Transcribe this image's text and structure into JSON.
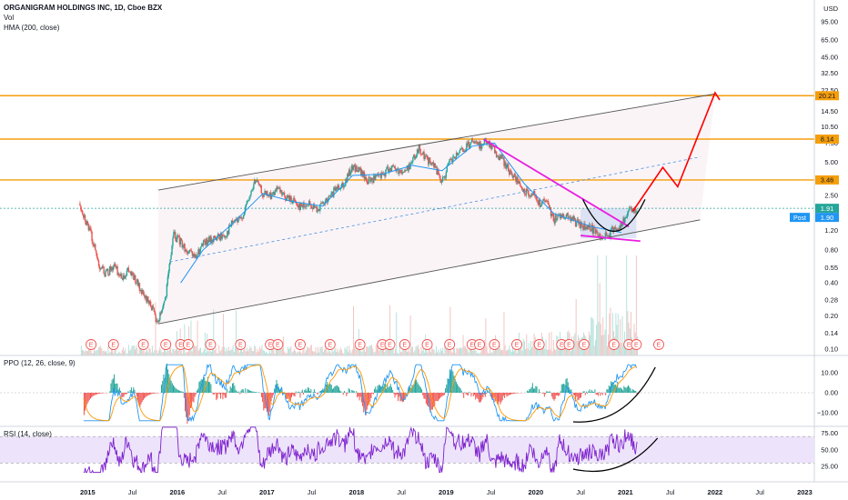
{
  "header": {
    "symbol_title": "ORGANIGRAM HOLDINGS INC, 1D, Cboe BZX",
    "volume_label": "Vol",
    "hma_label": "HMA (200, close)",
    "currency": "USD"
  },
  "panes": {
    "ppo_label": "PPO (12, 26, close, 9)",
    "rsi_label": "RSI (14, close)",
    "post_tag": "Post",
    "earnings_marker": "E"
  },
  "colors": {
    "candle_up": "#26a69a",
    "candle_down": "#ef5350",
    "hma": "#2196f3",
    "resistance": "#f59e0b",
    "channel": "#555555",
    "trendline": "#e91ee0",
    "projection": "#ff0000",
    "rsi": "#7e22ce",
    "rsi_band": "#ede3fa",
    "ppo_line": "#2196f3",
    "ppo_signal": "#ff9800"
  },
  "chart_data": [
    {
      "type": "candlestick",
      "title": "ORGANIGRAM HOLDINGS INC, 1D, Cboe BZX",
      "x_axis": {
        "ticks": [
          "2015",
          "Jul",
          "2016",
          "Jul",
          "2017",
          "Jul",
          "2018",
          "Jul",
          "2019",
          "Jul",
          "2020",
          "Jul",
          "2021",
          "Jul",
          "2022",
          "Jul",
          "2023"
        ],
        "range": [
          "2014-10",
          "2023-04"
        ]
      },
      "y_axis": {
        "unit": "USD",
        "scale": "log",
        "ticks": [
          95.0,
          65.0,
          45.0,
          32.5,
          22.5,
          14.5,
          10.5,
          7.5,
          5.0,
          3.5,
          2.5,
          1.75,
          1.2,
          0.8,
          0.55,
          0.4,
          0.28,
          0.2,
          0.14,
          0.1
        ],
        "tick_labels": [
          "95.00",
          "65.00",
          "45.00",
          "32.50",
          "22.50",
          "14.50",
          "10.50",
          "7.50",
          "5.00",
          "3.50",
          "2.50",
          "1.75",
          "1.20",
          "0.80",
          "0.55",
          "0.40",
          "0.28",
          "0.20",
          "0.14",
          "0.10"
        ]
      },
      "price_path": [
        {
          "date": "2014-11-15",
          "price": 2.7
        },
        {
          "date": "2014-12-15",
          "price": 1.7
        },
        {
          "date": "2015-01-15",
          "price": 1.1
        },
        {
          "date": "2015-02-15",
          "price": 0.6
        },
        {
          "date": "2015-03-15",
          "price": 0.48
        },
        {
          "date": "2015-04-15",
          "price": 0.58
        },
        {
          "date": "2015-05-15",
          "price": 0.45
        },
        {
          "date": "2015-06-15",
          "price": 0.52
        },
        {
          "date": "2015-07-15",
          "price": 0.42
        },
        {
          "date": "2015-08-15",
          "price": 0.3
        },
        {
          "date": "2015-09-15",
          "price": 0.26
        },
        {
          "date": "2015-10-10",
          "price": 0.17
        },
        {
          "date": "2015-11-15",
          "price": 0.3
        },
        {
          "date": "2015-12-15",
          "price": 1.1
        },
        {
          "date": "2016-01-15",
          "price": 0.95
        },
        {
          "date": "2016-02-15",
          "price": 0.75
        },
        {
          "date": "2016-03-15",
          "price": 0.68
        },
        {
          "date": "2016-04-15",
          "price": 0.9
        },
        {
          "date": "2016-05-15",
          "price": 1.0
        },
        {
          "date": "2016-06-15",
          "price": 1.05
        },
        {
          "date": "2016-07-15",
          "price": 1.1
        },
        {
          "date": "2016-08-15",
          "price": 1.45
        },
        {
          "date": "2016-09-15",
          "price": 1.5
        },
        {
          "date": "2016-10-15",
          "price": 2.2
        },
        {
          "date": "2016-11-15",
          "price": 3.5
        },
        {
          "date": "2016-12-15",
          "price": 2.6
        },
        {
          "date": "2017-01-15",
          "price": 2.5
        },
        {
          "date": "2017-02-15",
          "price": 2.8
        },
        {
          "date": "2017-03-15",
          "price": 2.4
        },
        {
          "date": "2017-04-15",
          "price": 2.3
        },
        {
          "date": "2017-05-15",
          "price": 2.0
        },
        {
          "date": "2017-06-15",
          "price": 2.1
        },
        {
          "date": "2017-07-15",
          "price": 1.9
        },
        {
          "date": "2017-08-15",
          "price": 2.05
        },
        {
          "date": "2017-09-15",
          "price": 2.4
        },
        {
          "date": "2017-10-15",
          "price": 3.0
        },
        {
          "date": "2017-11-15",
          "price": 3.3
        },
        {
          "date": "2017-12-15",
          "price": 4.6
        },
        {
          "date": "2018-01-15",
          "price": 4.2
        },
        {
          "date": "2018-02-15",
          "price": 3.4
        },
        {
          "date": "2018-03-15",
          "price": 3.6
        },
        {
          "date": "2018-04-15",
          "price": 3.8
        },
        {
          "date": "2018-05-15",
          "price": 4.6
        },
        {
          "date": "2018-06-15",
          "price": 4.3
        },
        {
          "date": "2018-07-15",
          "price": 4.1
        },
        {
          "date": "2018-08-15",
          "price": 5.2
        },
        {
          "date": "2018-09-15",
          "price": 6.7
        },
        {
          "date": "2018-10-15",
          "price": 5.3
        },
        {
          "date": "2018-11-15",
          "price": 4.6
        },
        {
          "date": "2018-12-15",
          "price": 3.3
        },
        {
          "date": "2019-01-15",
          "price": 5.0
        },
        {
          "date": "2019-02-15",
          "price": 5.8
        },
        {
          "date": "2019-03-15",
          "price": 6.6
        },
        {
          "date": "2019-04-15",
          "price": 7.6
        },
        {
          "date": "2019-05-15",
          "price": 7.0
        },
        {
          "date": "2019-06-15",
          "price": 8.1
        },
        {
          "date": "2019-07-15",
          "price": 6.3
        },
        {
          "date": "2019-08-15",
          "price": 5.4
        },
        {
          "date": "2019-09-15",
          "price": 4.2
        },
        {
          "date": "2019-10-15",
          "price": 3.4
        },
        {
          "date": "2019-11-15",
          "price": 2.6
        },
        {
          "date": "2019-12-15",
          "price": 2.7
        },
        {
          "date": "2020-01-15",
          "price": 2.1
        },
        {
          "date": "2020-02-15",
          "price": 2.2
        },
        {
          "date": "2020-03-15",
          "price": 1.5
        },
        {
          "date": "2020-04-15",
          "price": 1.7
        },
        {
          "date": "2020-05-15",
          "price": 1.6
        },
        {
          "date": "2020-06-15",
          "price": 1.4
        },
        {
          "date": "2020-07-15",
          "price": 1.3
        },
        {
          "date": "2020-08-15",
          "price": 1.25
        },
        {
          "date": "2020-09-15",
          "price": 1.1
        },
        {
          "date": "2020-10-15",
          "price": 1.05
        },
        {
          "date": "2020-11-15",
          "price": 1.25
        },
        {
          "date": "2020-12-15",
          "price": 1.35
        },
        {
          "date": "2021-01-15",
          "price": 1.8
        },
        {
          "date": "2021-02-15",
          "price": 1.91
        }
      ],
      "hma_path": [
        {
          "date": "2016-01-15",
          "price": 0.4
        },
        {
          "date": "2016-04-15",
          "price": 0.8
        },
        {
          "date": "2016-08-15",
          "price": 1.4
        },
        {
          "date": "2016-12-15",
          "price": 2.6
        },
        {
          "date": "2017-04-15",
          "price": 2.2
        },
        {
          "date": "2017-08-15",
          "price": 2.0
        },
        {
          "date": "2017-12-15",
          "price": 3.8
        },
        {
          "date": "2018-04-15",
          "price": 3.9
        },
        {
          "date": "2018-08-15",
          "price": 4.7
        },
        {
          "date": "2018-12-15",
          "price": 4.2
        },
        {
          "date": "2019-04-15",
          "price": 7.0
        },
        {
          "date": "2019-07-15",
          "price": 7.5
        },
        {
          "date": "2019-11-15",
          "price": 3.2
        },
        {
          "date": "2020-03-15",
          "price": 1.7
        },
        {
          "date": "2020-08-15",
          "price": 1.3
        },
        {
          "date": "2020-12-15",
          "price": 1.15
        }
      ],
      "horizontal_levels": [
        20.21,
        8.14,
        3.46,
        1.91
      ],
      "price_labels": [
        "20.21",
        "8.14",
        "3.46",
        "1.91",
        "1.90"
      ],
      "channel": {
        "upper": [
          {
            "date": "2015-10-15",
            "price": 2.8
          },
          {
            "date": "2022-01-01",
            "price": 21.0
          }
        ],
        "lower": [
          {
            "date": "2015-10-15",
            "price": 0.17
          },
          {
            "date": "2021-11-01",
            "price": 1.5
          }
        ],
        "mid": [
          {
            "date": "2015-12-01",
            "price": 0.62
          },
          {
            "date": "2021-11-01",
            "price": 5.6
          }
        ]
      },
      "downtrend_line": [
        {
          "date": "2019-06-01",
          "price": 8.1
        },
        {
          "date": "2021-01-15",
          "price": 1.3
        }
      ],
      "support_line": [
        {
          "date": "2020-07-01",
          "price": 1.08
        },
        {
          "date": "2021-03-01",
          "price": 0.96
        }
      ],
      "projection_path": [
        {
          "date": "2021-02-01",
          "price": 1.8
        },
        {
          "date": "2021-06-01",
          "price": 4.5
        },
        {
          "date": "2021-08-01",
          "price": 3.0
        },
        {
          "date": "2022-01-01",
          "price": 21.5
        },
        {
          "date": "2022-01-20",
          "price": 18.5
        }
      ],
      "earnings_dates": [
        "2015-01",
        "2015-04",
        "2015-08",
        "2015-11",
        "2016-01",
        "2016-02",
        "2016-05",
        "2016-09",
        "2017-01",
        "2017-02",
        "2017-05",
        "2017-09",
        "2018-01",
        "2018-04",
        "2018-05",
        "2018-07",
        "2018-10",
        "2019-01",
        "2019-04",
        "2019-05",
        "2019-07",
        "2019-10",
        "2020-01",
        "2020-04",
        "2020-05",
        "2020-07",
        "2020-11",
        "2021-01",
        "2021-02",
        "2021-05"
      ]
    },
    {
      "type": "line",
      "title": "PPO (12, 26, close, 9)",
      "y_axis": {
        "ticks": [
          10.0,
          0.0,
          -10.0
        ],
        "tick_labels": [
          "10.00",
          "0.00",
          "−10.00"
        ]
      }
    },
    {
      "type": "line",
      "title": "RSI (14, close)",
      "y_axis": {
        "ticks": [
          75,
          50,
          25
        ],
        "tick_labels": [
          "75.00",
          "50.00",
          "25.00"
        ]
      },
      "band": [
        30,
        70
      ]
    }
  ]
}
